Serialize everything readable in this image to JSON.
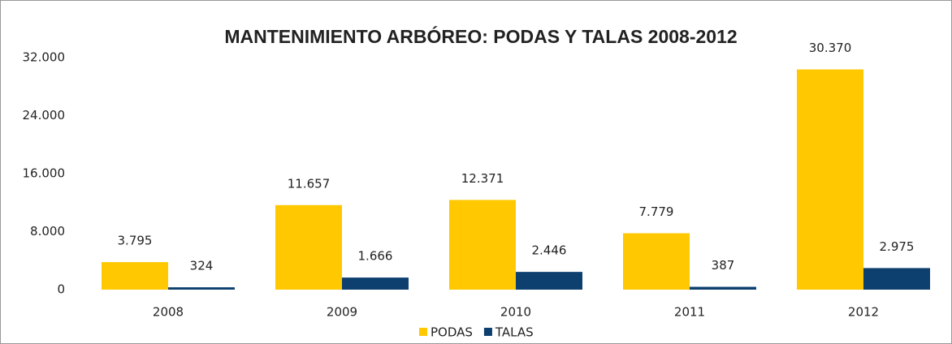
{
  "chart_data": {
    "type": "bar",
    "title": "MANTENIMIENTO ARBÓREO: PODAS Y TALAS 2008-2012",
    "categories": [
      "2008",
      "2009",
      "2010",
      "2011",
      "2012"
    ],
    "series": [
      {
        "name": "PODAS",
        "color": "#ffc800",
        "values": [
          3795,
          11657,
          12371,
          7779,
          30370
        ],
        "value_labels": [
          "3.795",
          "11.657",
          "12.371",
          "7.779",
          "30.370"
        ]
      },
      {
        "name": "TALAS",
        "color": "#0d3f6f",
        "values": [
          324,
          1666,
          2446,
          387,
          2975
        ],
        "value_labels": [
          "324",
          "1.666",
          "2.446",
          "387",
          "2.975"
        ]
      }
    ],
    "ylim": [
      0,
      32000
    ],
    "yticks": [
      0,
      {
        "value": 8000,
        "label": "8.000"
      },
      {
        "value": 16000,
        "label": "16.000"
      },
      {
        "value": 24000,
        "label": "24.000"
      },
      {
        "value": 32000,
        "label": "32.000"
      }
    ],
    "grid": false,
    "legend": "bottom"
  }
}
